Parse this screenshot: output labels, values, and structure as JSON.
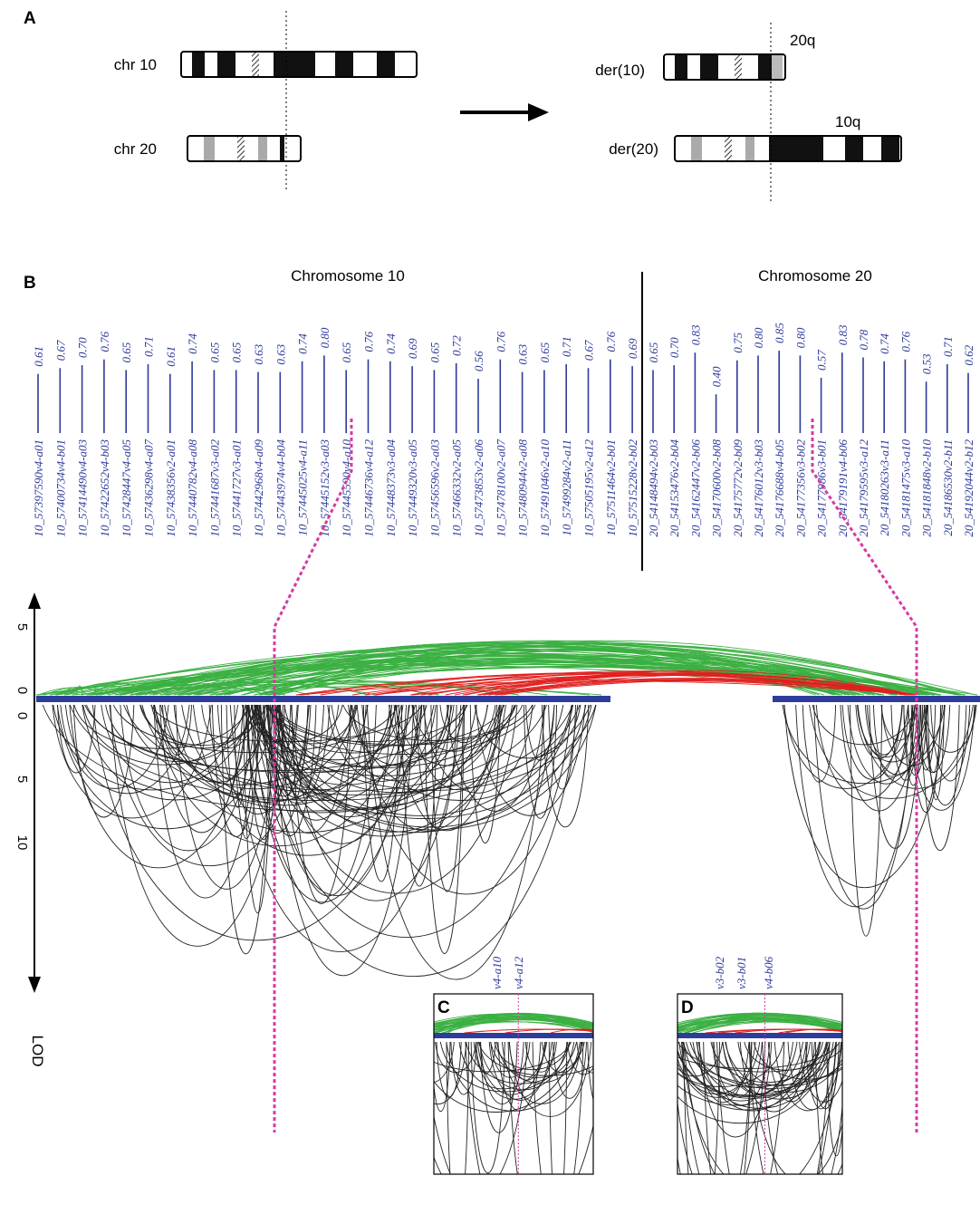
{
  "panels": {
    "a": "A",
    "b": "B",
    "c": "C",
    "d": "D"
  },
  "panel_a": {
    "chr10": "chr 10",
    "chr20": "chr 20",
    "der10": "der(10)",
    "der20": "der(20)",
    "arm20q": "20q",
    "arm10q": "10q"
  },
  "panel_b": {
    "headings": [
      "Chromosome 10",
      "Chromosome 20"
    ],
    "markers": [
      {
        "name": "10_57397590v4-a01",
        "value": 0.61,
        "label": "0.61"
      },
      {
        "name": "10_57400734v4-b01",
        "value": 0.67,
        "label": "0.67"
      },
      {
        "name": "10_57414490v4-a03",
        "value": 0.7,
        "label": "0.70"
      },
      {
        "name": "10_57422652v4-b03",
        "value": 0.76,
        "label": "0.76"
      },
      {
        "name": "10_57428447v4-a05",
        "value": 0.65,
        "label": "0.65"
      },
      {
        "name": "10_57436298v4-a07",
        "value": 0.71,
        "label": "0.71"
      },
      {
        "name": "10_57438356v2-a01",
        "value": 0.61,
        "label": "0.61"
      },
      {
        "name": "10_57440782v4-a08",
        "value": 0.74,
        "label": "0.74"
      },
      {
        "name": "10_57441687v3-a02",
        "value": 0.65,
        "label": "0.65"
      },
      {
        "name": "10_57441727v3-a01",
        "value": 0.65,
        "label": "0.65"
      },
      {
        "name": "10_57442968v4-a09",
        "value": 0.63,
        "label": "0.63"
      },
      {
        "name": "10_57443974v4-b04",
        "value": 0.63,
        "label": "0.63"
      },
      {
        "name": "10_57445025v4-a11",
        "value": 0.74,
        "label": "0.74"
      },
      {
        "name": "10_57445152v3-a03",
        "value": 0.8,
        "label": "0.80"
      },
      {
        "name": "10_57445590v4-a10",
        "value": 0.65,
        "label": "0.65"
      },
      {
        "name": "10_57446736v4-a12",
        "value": 0.76,
        "label": "0.76"
      },
      {
        "name": "10_57448373v3-a04",
        "value": 0.74,
        "label": "0.74"
      },
      {
        "name": "10_57449320v3-a05",
        "value": 0.69,
        "label": "0.69"
      },
      {
        "name": "10_57456596v2-a03",
        "value": 0.65,
        "label": "0.65"
      },
      {
        "name": "10_57466332v2-a05",
        "value": 0.72,
        "label": "0.72"
      },
      {
        "name": "10_57473853v2-a06",
        "value": 0.56,
        "label": "0.56"
      },
      {
        "name": "10_57478100v2-a07",
        "value": 0.76,
        "label": "0.76"
      },
      {
        "name": "10_57480944v2-a08",
        "value": 0.63,
        "label": "0.63"
      },
      {
        "name": "10_57491046v2-a10",
        "value": 0.65,
        "label": "0.65"
      },
      {
        "name": "10_57499284v2-a11",
        "value": 0.71,
        "label": "0.71"
      },
      {
        "name": "10_57505195v2-a12",
        "value": 0.67,
        "label": "0.67"
      },
      {
        "name": "10_57511464v2-b01",
        "value": 0.76,
        "label": "0.76"
      },
      {
        "name": "10_57515228v2-b02",
        "value": 0.69,
        "label": "0.69"
      },
      {
        "name": "20_54148494v2-b03",
        "value": 0.65,
        "label": "0.65"
      },
      {
        "name": "20_54153476v2-b04",
        "value": 0.7,
        "label": "0.70"
      },
      {
        "name": "20_54162447v2-b06",
        "value": 0.83,
        "label": "0.83"
      },
      {
        "name": "20_54170600v2-b08",
        "value": 0.4,
        "label": "0.40"
      },
      {
        "name": "20_54175772v2-b09",
        "value": 0.75,
        "label": "0.75"
      },
      {
        "name": "20_54176012v3-b03",
        "value": 0.8,
        "label": "0.80"
      },
      {
        "name": "20_54176688v4-b05",
        "value": 0.85,
        "label": "0.85"
      },
      {
        "name": "20_54177356v3-b02",
        "value": 0.8,
        "label": "0.80"
      },
      {
        "name": "20_54177986v3-b01",
        "value": 0.57,
        "label": "0.57"
      },
      {
        "name": "20_54179191v4-b06",
        "value": 0.83,
        "label": "0.83"
      },
      {
        "name": "20_54179595v3-a12",
        "value": 0.78,
        "label": "0.78"
      },
      {
        "name": "20_54180263v3-a11",
        "value": 0.74,
        "label": "0.74"
      },
      {
        "name": "20_54181475v3-a10",
        "value": 0.76,
        "label": "0.76"
      },
      {
        "name": "20_54181848v2-b10",
        "value": 0.53,
        "label": "0.53"
      },
      {
        "name": "20_54186530v2-b11",
        "value": 0.71,
        "label": "0.71"
      },
      {
        "name": "20_54192044v2-b12",
        "value": 0.62,
        "label": "0.62"
      }
    ],
    "upper_ticks": [
      0,
      5
    ],
    "lower_ticks": [
      0,
      5,
      10
    ],
    "axis_label": "LOD"
  },
  "inset_c": {
    "markers": [
      "v4-a10",
      "v4-a12"
    ]
  },
  "inset_d": {
    "markers": [
      "v3-b02",
      "v3-b01",
      "v4-b06"
    ]
  }
}
